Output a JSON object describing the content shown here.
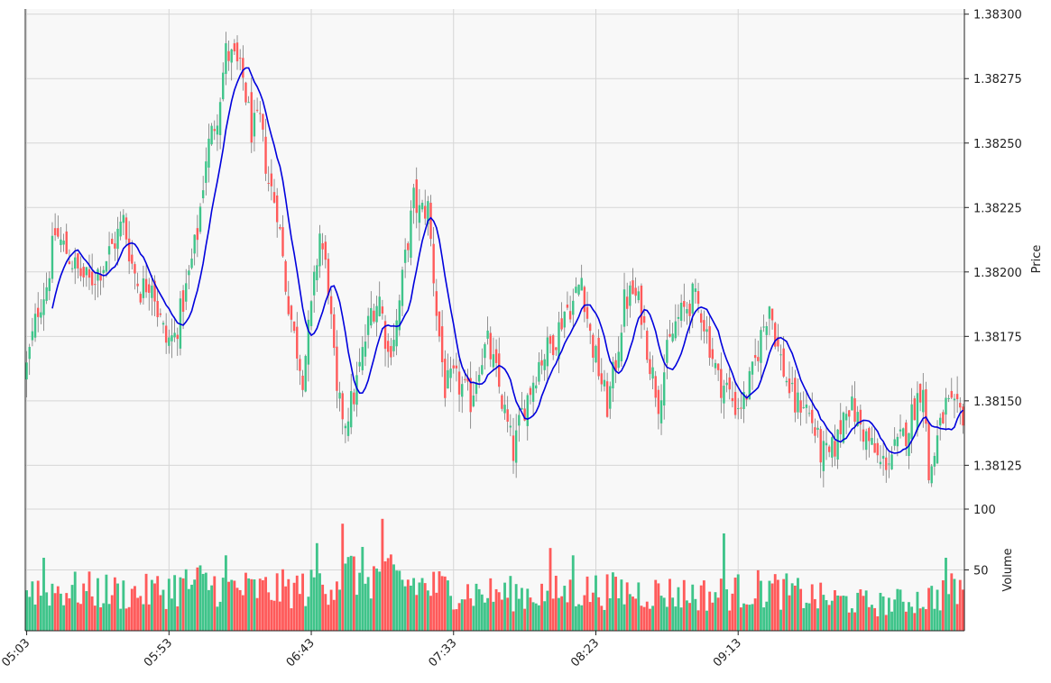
{
  "chart_data": {
    "type": "candlestick",
    "price_panel": {
      "ylabel": "Price",
      "ylim": [
        1.38108,
        1.38302
      ],
      "yticks": [
        1.38125,
        1.3815,
        1.38175,
        1.382,
        1.38225,
        1.3825,
        1.38275,
        1.383
      ],
      "ytick_labels": [
        "1.38125",
        "1.38150",
        "1.38175",
        "1.38200",
        "1.38225",
        "1.38250",
        "1.38275",
        "1.38300"
      ],
      "grid": true,
      "moving_average_color": "#0000dd"
    },
    "volume_panel": {
      "ylabel": "Volume",
      "ylim": [
        0,
        100
      ],
      "yticks": [
        50,
        100
      ],
      "ytick_labels": [
        "50",
        "100"
      ]
    },
    "x_axis": {
      "start_time": "05:03",
      "interval_minutes": 1,
      "tick_labels": [
        "05:03",
        "05:53",
        "06:43",
        "07:33",
        "08:23",
        "09:13"
      ],
      "tick_rotation": 45
    },
    "colors": {
      "up": "#3fc48a",
      "down": "#ff5a5a",
      "wick": "#666666",
      "ma": "#0000dd",
      "panel_bg": "#f8f8f8",
      "grid": "#d6d6d6"
    },
    "anchors": [
      [
        0,
        1.38163
      ],
      [
        4,
        1.38186
      ],
      [
        7,
        1.38195
      ],
      [
        10,
        1.38215
      ],
      [
        14,
        1.38208
      ],
      [
        18,
        1.382
      ],
      [
        22,
        1.38196
      ],
      [
        27,
        1.38203
      ],
      [
        31,
        1.38212
      ],
      [
        34,
        1.3822
      ],
      [
        37,
        1.38203
      ],
      [
        40,
        1.38193
      ],
      [
        44,
        1.38198
      ],
      [
        46,
        1.38185
      ],
      [
        49,
        1.38173
      ],
      [
        52,
        1.38175
      ],
      [
        56,
        1.38193
      ],
      [
        60,
        1.38215
      ],
      [
        63,
        1.38245
      ],
      [
        67,
        1.38262
      ],
      [
        70,
        1.38285
      ],
      [
        73,
        1.38282
      ],
      [
        76,
        1.38275
      ],
      [
        79,
        1.38255
      ],
      [
        82,
        1.38258
      ],
      [
        85,
        1.38235
      ],
      [
        88,
        1.38225
      ],
      [
        91,
        1.38195
      ],
      [
        94,
        1.38175
      ],
      [
        97,
        1.3816
      ],
      [
        100,
        1.38185
      ],
      [
        103,
        1.38215
      ],
      [
        106,
        1.38195
      ],
      [
        109,
        1.3815
      ],
      [
        112,
        1.38143
      ],
      [
        115,
        1.38152
      ],
      [
        118,
        1.38168
      ],
      [
        121,
        1.38185
      ],
      [
        124,
        1.3819
      ],
      [
        127,
        1.38168
      ],
      [
        130,
        1.3818
      ],
      [
        133,
        1.38205
      ],
      [
        136,
        1.38228
      ],
      [
        138,
        1.38223
      ],
      [
        141,
        1.38225
      ],
      [
        144,
        1.38185
      ],
      [
        147,
        1.38155
      ],
      [
        150,
        1.38158
      ],
      [
        153,
        1.38155
      ],
      [
        156,
        1.3815
      ],
      [
        159,
        1.38165
      ],
      [
        162,
        1.38172
      ],
      [
        165,
        1.3816
      ],
      [
        168,
        1.38145
      ],
      [
        171,
        1.3813
      ],
      [
        174,
        1.38145
      ],
      [
        177,
        1.38155
      ],
      [
        180,
        1.38165
      ],
      [
        183,
        1.3817
      ],
      [
        186,
        1.38175
      ],
      [
        189,
        1.38185
      ],
      [
        192,
        1.38188
      ],
      [
        195,
        1.38198
      ],
      [
        198,
        1.38175
      ],
      [
        201,
        1.38162
      ],
      [
        204,
        1.38148
      ],
      [
        207,
        1.38165
      ],
      [
        210,
        1.38188
      ],
      [
        213,
        1.38192
      ],
      [
        216,
        1.38185
      ],
      [
        219,
        1.38165
      ],
      [
        222,
        1.3815
      ],
      [
        225,
        1.38168
      ],
      [
        228,
        1.3818
      ],
      [
        231,
        1.38185
      ],
      [
        234,
        1.3819
      ],
      [
        237,
        1.38185
      ],
      [
        240,
        1.38172
      ],
      [
        243,
        1.38158
      ],
      [
        246,
        1.38155
      ],
      [
        249,
        1.38148
      ],
      [
        252,
        1.3815
      ],
      [
        255,
        1.3816
      ],
      [
        258,
        1.38175
      ],
      [
        261,
        1.38188
      ],
      [
        264,
        1.3817
      ],
      [
        267,
        1.38158
      ],
      [
        270,
        1.38148
      ],
      [
        273,
        1.3815
      ],
      [
        276,
        1.38142
      ],
      [
        279,
        1.3813
      ],
      [
        282,
        1.38128
      ],
      [
        285,
        1.38135
      ],
      [
        288,
        1.3815
      ],
      [
        291,
        1.38145
      ],
      [
        294,
        1.38138
      ],
      [
        297,
        1.38132
      ],
      [
        300,
        1.38125
      ],
      [
        303,
        1.38128
      ],
      [
        306,
        1.38132
      ],
      [
        309,
        1.38138
      ],
      [
        312,
        1.38148
      ],
      [
        315,
        1.38158
      ],
      [
        317,
        1.3812
      ],
      [
        320,
        1.38135
      ],
      [
        323,
        1.38148
      ],
      [
        326,
        1.38145
      ],
      [
        329,
        1.38145
      ]
    ],
    "volume_anchors": [
      [
        0,
        40
      ],
      [
        20,
        38
      ],
      [
        40,
        35
      ],
      [
        60,
        45
      ],
      [
        80,
        38
      ],
      [
        100,
        40
      ],
      [
        115,
        55
      ],
      [
        125,
        50
      ],
      [
        140,
        42
      ],
      [
        160,
        35
      ],
      [
        180,
        35
      ],
      [
        200,
        38
      ],
      [
        220,
        36
      ],
      [
        240,
        34
      ],
      [
        260,
        40
      ],
      [
        280,
        30
      ],
      [
        300,
        25
      ],
      [
        315,
        30
      ],
      [
        329,
        40
      ]
    ],
    "volume_spikes": [
      [
        111,
        88
      ],
      [
        125,
        92
      ],
      [
        102,
        72
      ],
      [
        245,
        80
      ],
      [
        184,
        68
      ],
      [
        192,
        62
      ],
      [
        6,
        60
      ],
      [
        70,
        62
      ],
      [
        323,
        60
      ]
    ]
  }
}
